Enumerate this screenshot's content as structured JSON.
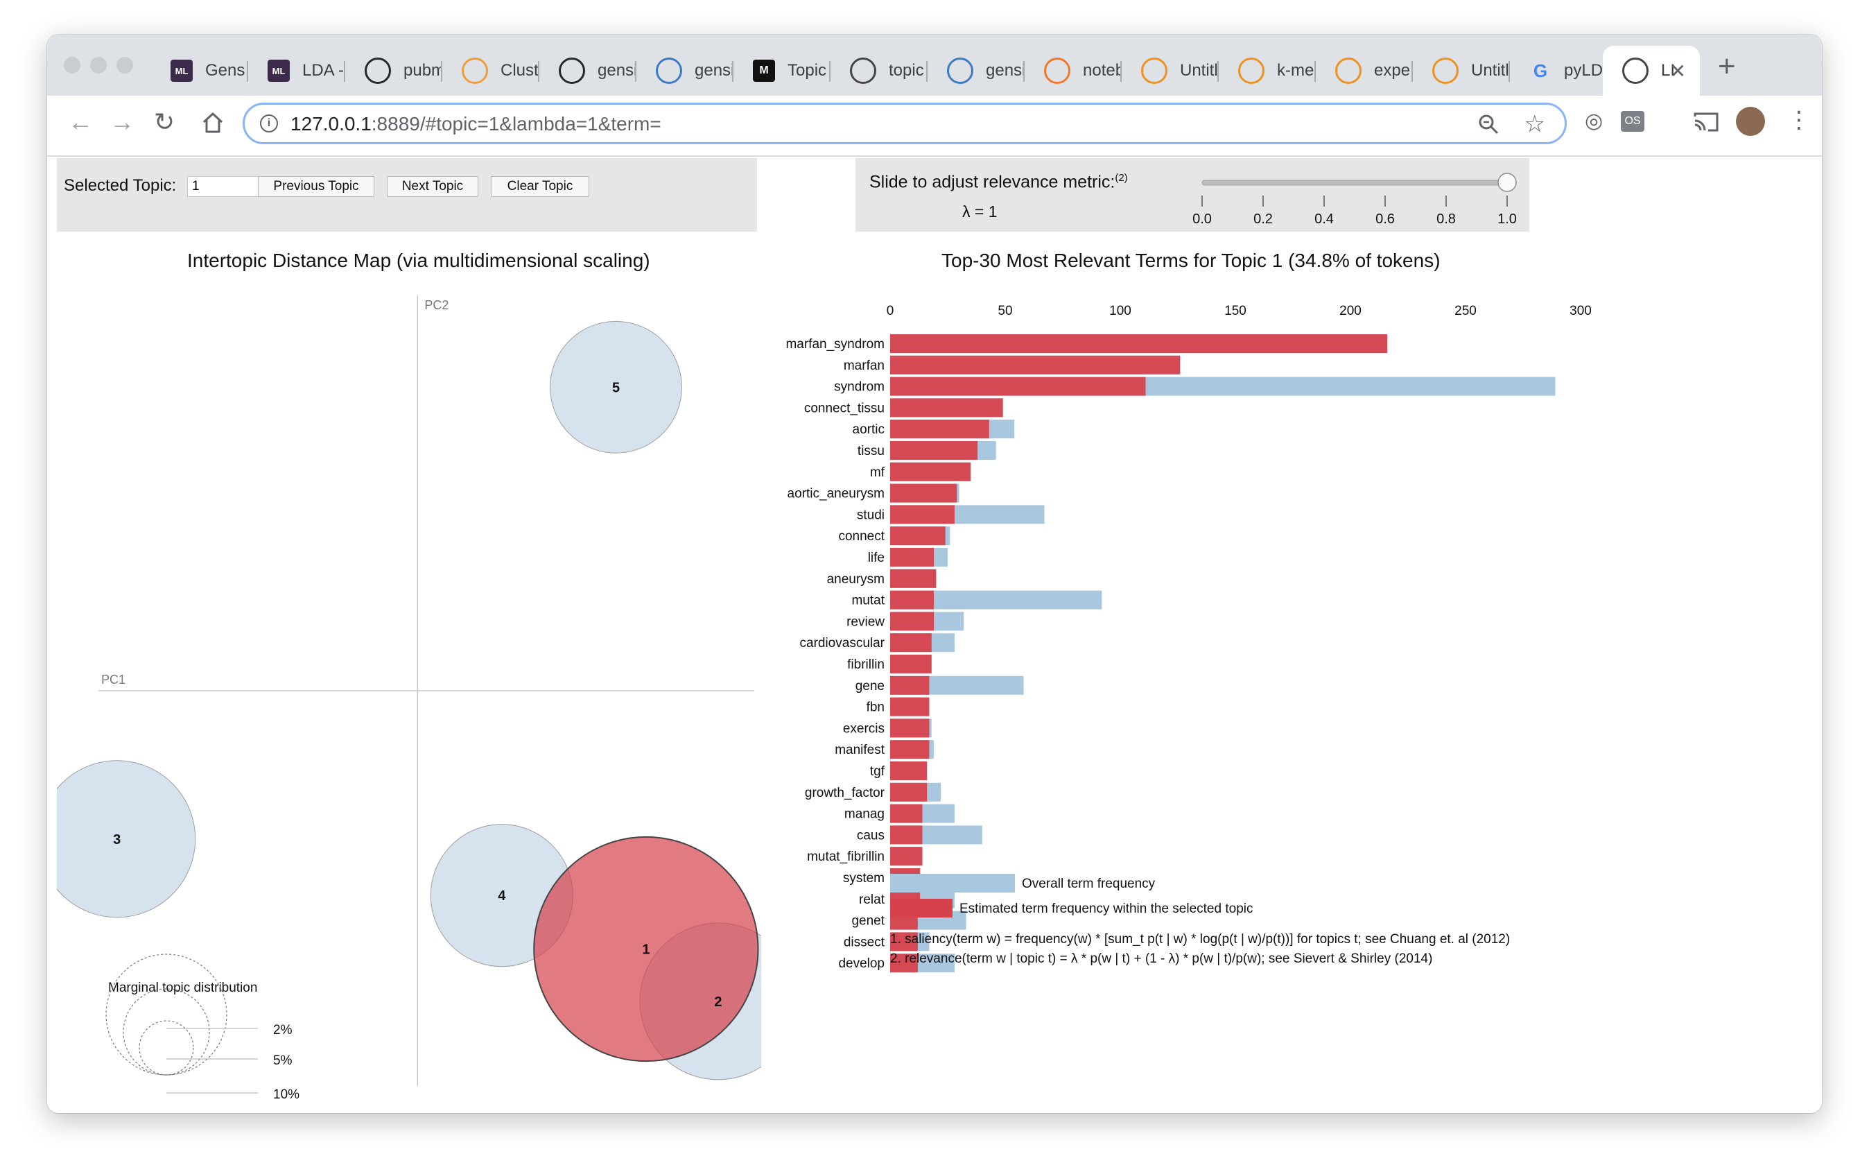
{
  "browser": {
    "tabs": [
      {
        "label": "Gens",
        "favicon": "ml-icon",
        "color": "#3b2a4a"
      },
      {
        "label": "LDA -",
        "favicon": "ml-icon",
        "color": "#3b2a4a"
      },
      {
        "label": "pubm",
        "favicon": "github-icon",
        "color": "#24292e"
      },
      {
        "label": "Clust",
        "favicon": "bar-chart-icon",
        "color": "#f29c38"
      },
      {
        "label": "gensi",
        "favicon": "github-icon",
        "color": "#24292e"
      },
      {
        "label": "gensi",
        "favicon": "globe-icon",
        "color": "#3c79c7"
      },
      {
        "label": "Topic",
        "favicon": "medium-icon",
        "color": "#111111"
      },
      {
        "label": "topic",
        "favicon": "globe-icon",
        "color": "#444444"
      },
      {
        "label": "gensi",
        "favicon": "globe-icon",
        "color": "#3c79c7"
      },
      {
        "label": "noteb",
        "favicon": "jupyter-icon",
        "color": "#f37726"
      },
      {
        "label": "Untitl",
        "favicon": "notebook-icon",
        "color": "#f0901e"
      },
      {
        "label": "k-me",
        "favicon": "notebook-icon",
        "color": "#f0901e"
      },
      {
        "label": "expe",
        "favicon": "hourglass-icon",
        "color": "#f0901e"
      },
      {
        "label": "Untitl",
        "favicon": "notebook-icon",
        "color": "#f0901e"
      },
      {
        "label": "pyLD",
        "favicon": "google-icon",
        "color": "#4285f4"
      },
      {
        "label": "LI",
        "favicon": "globe-icon",
        "color": "#444444",
        "active": true
      }
    ],
    "url_host": "127.0.0.1",
    "url_rest": ":8889/#topic=1&lambda=1&term="
  },
  "controls": {
    "selected_topic_label": "Selected Topic:",
    "selected_topic_value": "1",
    "previous_label": "Previous Topic",
    "next_label": "Next Topic",
    "clear_label": "Clear Topic",
    "slider_label": "Slide to adjust relevance metric:",
    "slider_footnote": "(2)",
    "lambda_text": "λ = 1",
    "lambda_value": 1,
    "slider_ticks": [
      "0.0",
      "0.2",
      "0.4",
      "0.6",
      "0.8",
      "1.0"
    ]
  },
  "left_chart": {
    "title": "Intertopic Distance Map (via multidimensional scaling)",
    "axis_pc1": "PC1",
    "axis_pc2": "PC2",
    "legend_title": "Marginal topic distribution",
    "legend_labels": [
      "2%",
      "5%",
      "10%"
    ]
  },
  "right_chart": {
    "title": "Top-30 Most Relevant Terms for Topic 1 (34.8% of tokens)",
    "legend_overall": "Overall term frequency",
    "legend_estimated": "Estimated term frequency within the selected topic",
    "footnote1": "1. saliency(term w) = frequency(w) * [sum_t p(t | w) * log(p(t | w)/p(t))] for topics t; see Chuang et. al (2012)",
    "footnote2": "2. relevance(term w | topic t) = λ * p(w | t) + (1 - λ) * p(w | t)/p(w); see Sievert & Shirley (2014)"
  },
  "colors": {
    "topic_red": "#d6424b",
    "overall_blue": "#a9c8e0",
    "circle_fill": "#ccdbe9"
  },
  "chart_data": [
    {
      "type": "scatter",
      "title": "Intertopic Distance Map (via multidimensional scaling)",
      "xlabel": "PC1",
      "ylabel": "PC2",
      "xlim": [
        -0.3,
        0.28
      ],
      "ylim": [
        -0.28,
        0.28
      ],
      "points": [
        {
          "label": "1",
          "x": 0.19,
          "y": -0.183,
          "size": 34.8,
          "selected": true
        },
        {
          "label": "2",
          "x": 0.25,
          "y": -0.22,
          "size": 17.0,
          "selected": false
        },
        {
          "label": "3",
          "x": -0.25,
          "y": -0.105,
          "size": 17.0,
          "selected": false
        },
        {
          "label": "4",
          "x": 0.07,
          "y": -0.145,
          "size": 14.0,
          "selected": false
        },
        {
          "label": "5",
          "x": 0.165,
          "y": 0.215,
          "size": 12.0,
          "selected": false
        }
      ]
    },
    {
      "type": "bar",
      "title": "Top-30 Most Relevant Terms for Topic 1 (34.8% of tokens)",
      "xlim": [
        0,
        300
      ],
      "xticks": [
        0,
        50,
        100,
        150,
        200,
        250,
        300
      ],
      "categories": [
        "marfan_syndrom",
        "marfan",
        "syndrom",
        "connect_tissu",
        "aortic",
        "tissu",
        "mf",
        "aortic_aneurysm",
        "studi",
        "connect",
        "life",
        "aneurysm",
        "mutat",
        "review",
        "cardiovascular",
        "fibrillin",
        "gene",
        "fbn",
        "exercis",
        "manifest",
        "tgf",
        "growth_factor",
        "manag",
        "caus",
        "mutat_fibrillin",
        "system",
        "relat",
        "genet",
        "dissect",
        "develop"
      ],
      "series": [
        {
          "name": "Overall term frequency",
          "values": [
            216,
            126,
            289,
            49,
            54,
            46,
            35,
            30,
            67,
            26,
            25,
            20,
            92,
            32,
            28,
            18,
            58,
            17,
            18,
            19,
            16,
            22,
            28,
            40,
            14,
            13,
            28,
            33,
            17,
            28
          ]
        },
        {
          "name": "Estimated term frequency within the selected topic",
          "values": [
            216,
            126,
            111,
            49,
            43,
            38,
            35,
            29,
            28,
            24,
            19,
            20,
            19,
            19,
            18,
            18,
            17,
            17,
            17,
            17,
            16,
            16,
            14,
            14,
            14,
            13,
            13,
            12,
            12,
            12
          ]
        }
      ]
    }
  ]
}
